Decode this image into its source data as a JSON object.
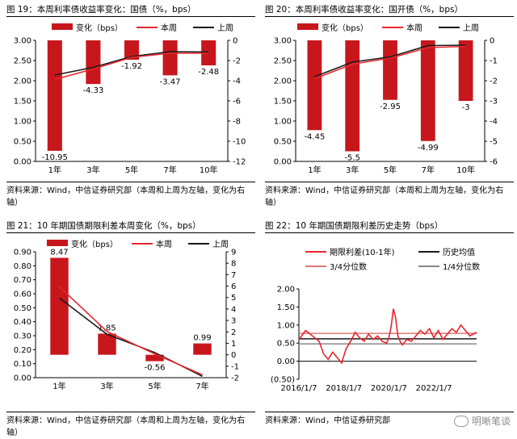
{
  "charts": [
    {
      "title": "图 19：本周利率债收益率变化：国债（%，bps）",
      "source": "资料来源：Wind，中信证券研究部（本周和上周为左轴，变化为右轴）",
      "legend": [
        "变化（bps）",
        "本周",
        "上周"
      ]
    },
    {
      "title": "图 20：本周利率债收益率变化：国开债（%，bps）",
      "source": "资料来源：Wind，中信证券研究部（本周和上周为左轴，变化为右轴）",
      "legend": [
        "变化（bps）",
        "本周",
        "上周"
      ]
    },
    {
      "title": "图 21：10 年期国债期限利差本周变化（%，bps）",
      "source": "资料来源：Wind，中信证券研究部（本周和上周为左轴，变化为右轴）",
      "legend": [
        "变化（bps）",
        "本周",
        "上周"
      ]
    },
    {
      "title": "图 22：10 年期国债期限利差历史走势（bps）",
      "source": "资料来源：Wind，中信证券研究部",
      "legend": [
        "期限利差(10-1年)",
        "历史均值",
        "3/4分位数",
        "1/4分位数"
      ]
    }
  ],
  "watermark": "明晰笔谈",
  "colors": {
    "bar": "#c8161d",
    "this_week": "#e8262d",
    "last_week": "#1a1a1a",
    "q3": "#e07878",
    "q1": "#888888"
  },
  "chart_data": [
    {
      "type": "bar",
      "categories": [
        "1年",
        "3年",
        "5年",
        "7年",
        "10年"
      ],
      "series": [
        {
          "name": "变化（bps）",
          "axis": "right",
          "type": "bar",
          "values": [
            -10.95,
            -4.33,
            -1.92,
            -3.47,
            -2.48
          ]
        },
        {
          "name": "本周",
          "axis": "left",
          "type": "line",
          "values": [
            2.03,
            2.29,
            2.58,
            2.68,
            2.68
          ]
        },
        {
          "name": "上周",
          "axis": "left",
          "type": "line",
          "values": [
            2.14,
            2.33,
            2.6,
            2.72,
            2.71
          ]
        }
      ],
      "left_axis": {
        "min": 0,
        "max": 3.0,
        "ticks": [
          "0.00",
          "0.50",
          "1.00",
          "1.50",
          "2.00",
          "2.50",
          "3.00"
        ]
      },
      "right_axis": {
        "min": -12,
        "max": 0,
        "ticks": [
          "-12",
          "-10",
          "-8",
          "-6",
          "-4",
          "-2",
          "0"
        ]
      }
    },
    {
      "type": "bar",
      "categories": [
        "1年",
        "3年",
        "5年",
        "7年",
        "10年"
      ],
      "series": [
        {
          "name": "变化（bps）",
          "axis": "right",
          "type": "bar",
          "values": [
            -4.45,
            -5.5,
            -2.95,
            -4.99,
            -3
          ]
        },
        {
          "name": "本周",
          "axis": "left",
          "type": "line",
          "values": [
            2.05,
            2.41,
            2.56,
            2.82,
            2.85
          ]
        },
        {
          "name": "上周",
          "axis": "left",
          "type": "line",
          "values": [
            2.1,
            2.46,
            2.59,
            2.87,
            2.88
          ]
        }
      ],
      "left_axis": {
        "min": 0,
        "max": 3.0,
        "ticks": [
          "0.00",
          "0.50",
          "1.00",
          "1.50",
          "2.00",
          "2.50",
          "3.00"
        ]
      },
      "right_axis": {
        "min": -6,
        "max": 0,
        "ticks": [
          "-6",
          "-5",
          "-4",
          "-3",
          "-2",
          "-1",
          "0"
        ]
      }
    },
    {
      "type": "bar",
      "categories": [
        "1年",
        "3年",
        "5年",
        "7年"
      ],
      "series": [
        {
          "name": "变化（bps）",
          "axis": "right",
          "type": "bar",
          "values": [
            8.47,
            1.85,
            -0.56,
            0.99
          ]
        },
        {
          "name": "本周",
          "axis": "left",
          "type": "line",
          "values": [
            0.65,
            0.33,
            0.17,
            0.02
          ]
        },
        {
          "name": "上周",
          "axis": "left",
          "type": "line",
          "values": [
            0.57,
            0.31,
            0.18,
            0.01
          ]
        }
      ],
      "left_axis": {
        "min": 0,
        "max": 0.9,
        "ticks": [
          "0.00",
          "0.10",
          "0.20",
          "0.30",
          "0.40",
          "0.50",
          "0.60",
          "0.70",
          "0.80",
          "0.90"
        ]
      },
      "right_axis": {
        "min": -2,
        "max": 9,
        "ticks": [
          "-2",
          "-1",
          "0",
          "1",
          "2",
          "3",
          "4",
          "5",
          "6",
          "7",
          "8",
          "9"
        ]
      }
    },
    {
      "type": "line",
      "x_ticks": [
        "2016/1/7",
        "2018/1/7",
        "2020/1/7",
        "2022/1/7"
      ],
      "x_range": [
        2016.0,
        2023.9
      ],
      "y_axis": {
        "min": -0.5,
        "max": 2.0,
        "ticks": [
          "(0.50)",
          "0.00",
          "0.50",
          "1.00",
          "1.50",
          "2.00"
        ]
      },
      "series": [
        {
          "name": "期限利差(10-1年)",
          "type": "line",
          "x": [
            2016.0,
            2016.3,
            2016.6,
            2016.9,
            2017.1,
            2017.3,
            2017.5,
            2017.7,
            2017.9,
            2018.1,
            2018.3,
            2018.5,
            2018.7,
            2018.9,
            2019.1,
            2019.3,
            2019.5,
            2019.7,
            2019.9,
            2020.0,
            2020.1,
            2020.2,
            2020.3,
            2020.4,
            2020.5,
            2020.6,
            2020.8,
            2021.0,
            2021.2,
            2021.4,
            2021.6,
            2021.8,
            2022.0,
            2022.2,
            2022.4,
            2022.6,
            2022.8,
            2023.0,
            2023.2,
            2023.4,
            2023.6,
            2023.9
          ],
          "values": [
            0.6,
            0.85,
            0.7,
            0.55,
            0.2,
            0.05,
            0.25,
            0.1,
            -0.05,
            0.35,
            0.55,
            0.8,
            0.65,
            0.55,
            0.75,
            0.6,
            0.7,
            0.55,
            0.5,
            0.65,
            0.95,
            1.45,
            1.2,
            0.7,
            0.55,
            0.45,
            0.6,
            0.55,
            0.7,
            0.85,
            0.75,
            0.9,
            0.65,
            0.85,
            0.6,
            0.75,
            0.9,
            0.8,
            1.0,
            0.85,
            0.7,
            0.8
          ]
        },
        {
          "name": "历史均值",
          "type": "line",
          "values": [
            0.62,
            0.62
          ]
        },
        {
          "name": "3/4分位数",
          "type": "line",
          "values": [
            0.77,
            0.77
          ]
        },
        {
          "name": "1/4分位数",
          "type": "line",
          "values": [
            0.48,
            0.48
          ]
        }
      ]
    }
  ]
}
